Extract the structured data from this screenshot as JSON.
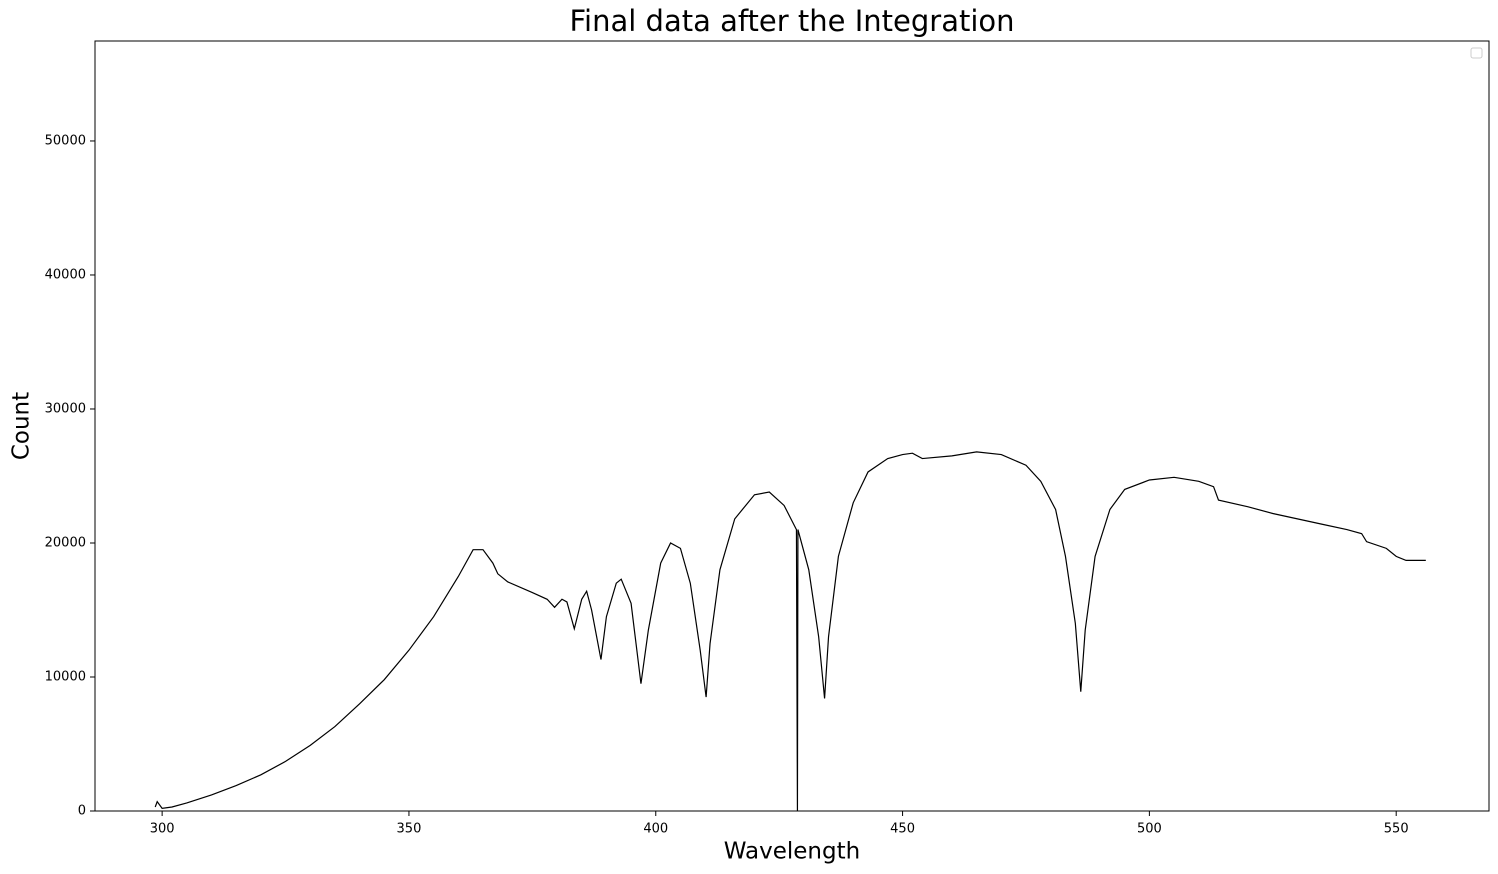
{
  "chart_data": {
    "type": "line",
    "title": "Final data after the Integration",
    "x_label": "Wavelength",
    "y_label": "Count",
    "x": [
      298.6,
      299,
      300,
      302,
      305,
      310,
      315,
      320,
      325,
      330,
      335,
      340,
      345,
      350,
      355,
      360,
      363,
      365,
      367,
      368,
      370,
      375,
      378,
      379.5,
      381,
      382,
      383.5,
      385,
      386,
      387,
      388.9,
      390,
      392,
      393,
      395,
      397,
      398.5,
      401,
      403,
      405,
      407,
      409,
      410.2,
      411,
      413,
      416,
      420,
      423,
      426,
      428.5,
      428.7,
      428.8,
      431,
      433,
      434.2,
      435,
      437,
      440,
      443,
      447,
      450,
      452,
      454,
      460,
      465,
      470,
      475,
      478,
      481,
      483,
      485,
      486.1,
      487,
      489,
      492,
      495,
      500,
      505,
      510,
      513,
      514,
      520,
      525,
      530,
      535,
      540,
      543,
      544,
      548,
      550,
      552,
      556
    ],
    "series": [
      {
        "color": "#000000",
        "values": [
          300,
          700,
          200,
          300,
          600,
          1200,
          1900,
          2700,
          3700,
          4900,
          6300,
          8000,
          9800,
          12000,
          14500,
          17500,
          19500,
          19500,
          18500,
          17700,
          17100,
          16300,
          15800,
          15200,
          15800,
          15600,
          13600,
          15800,
          16400,
          15000,
          11300,
          14500,
          17000,
          17300,
          15500,
          9500,
          13500,
          18500,
          20000,
          19600,
          17000,
          12000,
          8500,
          12500,
          18000,
          21800,
          23600,
          23800,
          22800,
          21000,
          0,
          21000,
          18000,
          13000,
          8400,
          13000,
          19000,
          23000,
          25300,
          26300,
          26600,
          26700,
          26300,
          26500,
          26800,
          26600,
          25800,
          24600,
          22500,
          19000,
          14000,
          8900,
          13500,
          19000,
          22500,
          24000,
          24700,
          24900,
          24600,
          24200,
          23200,
          22700,
          22200,
          21800,
          21400,
          21000,
          20700,
          20100,
          19600,
          19000,
          18700,
          18700
        ]
      }
    ],
    "xlim": [
      286.4,
      568.8
    ],
    "ylim": [
      0,
      57460
    ],
    "xticks": [
      300,
      350,
      400,
      450,
      500,
      550
    ],
    "yticks": [
      0,
      10000,
      20000,
      30000,
      40000,
      50000
    ]
  }
}
